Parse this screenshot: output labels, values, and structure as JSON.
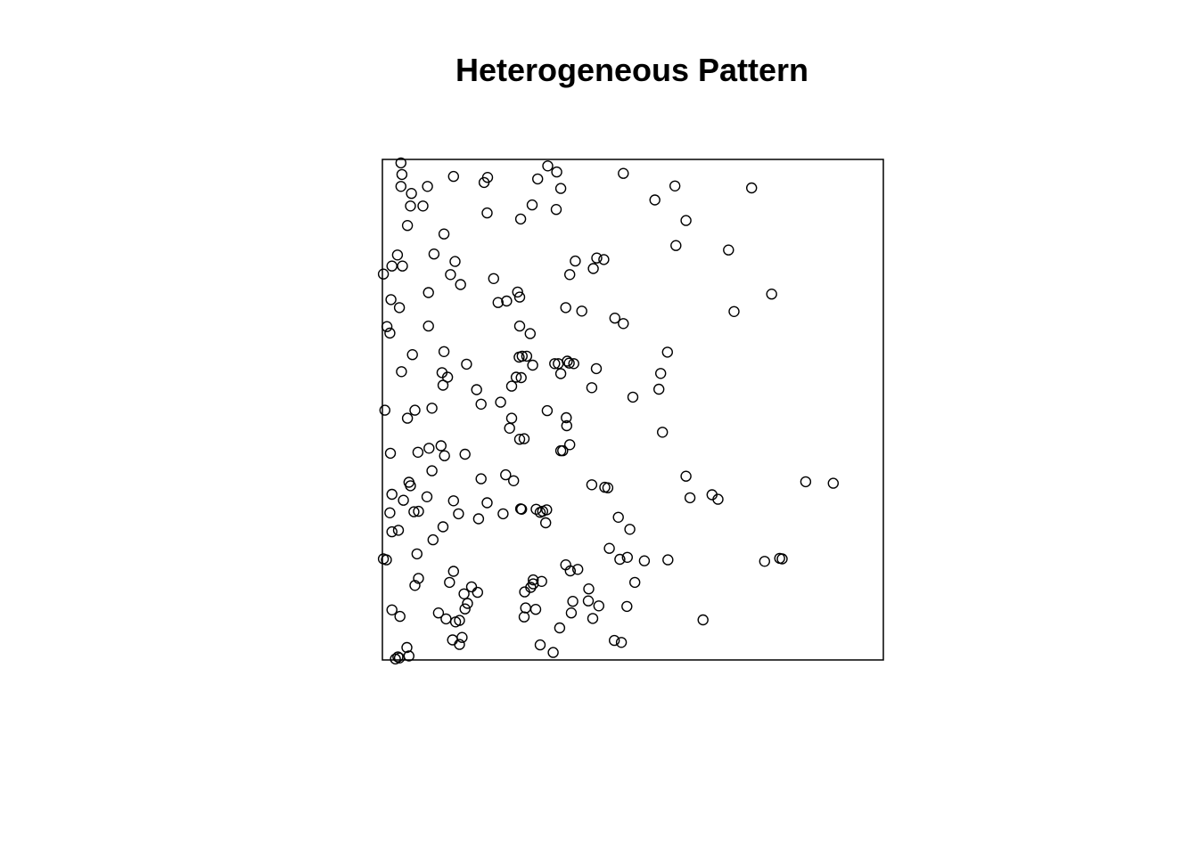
{
  "title": "Heterogeneous Pattern",
  "chart_data": {
    "type": "scatter",
    "title": "Heterogeneous Pattern",
    "xlabel": "",
    "ylabel": "",
    "xlim": [
      0,
      1
    ],
    "ylim": [
      0,
      1
    ],
    "axes_shown": false,
    "grid": false,
    "marker": "open-circle",
    "marker_color": "#000000",
    "points": [
      [
        0.037,
        0.993
      ],
      [
        0.039,
        0.97
      ],
      [
        0.037,
        0.946
      ],
      [
        0.058,
        0.932
      ],
      [
        0.056,
        0.907
      ],
      [
        0.081,
        0.907
      ],
      [
        0.09,
        0.946
      ],
      [
        0.142,
        0.966
      ],
      [
        0.05,
        0.868
      ],
      [
        0.21,
        0.964
      ],
      [
        0.203,
        0.954
      ],
      [
        0.209,
        0.893
      ],
      [
        0.276,
        0.881
      ],
      [
        0.33,
        0.987
      ],
      [
        0.348,
        0.975
      ],
      [
        0.31,
        0.961
      ],
      [
        0.356,
        0.942
      ],
      [
        0.347,
        0.9
      ],
      [
        0.299,
        0.909
      ],
      [
        0.481,
        0.972
      ],
      [
        0.544,
        0.919
      ],
      [
        0.584,
        0.947
      ],
      [
        0.606,
        0.878
      ],
      [
        0.586,
        0.828
      ],
      [
        0.737,
        0.943
      ],
      [
        0.691,
        0.819
      ],
      [
        0.123,
        0.851
      ],
      [
        0.103,
        0.811
      ],
      [
        0.145,
        0.796
      ],
      [
        0.136,
        0.77
      ],
      [
        0.156,
        0.75
      ],
      [
        0.03,
        0.809
      ],
      [
        0.019,
        0.787
      ],
      [
        0.04,
        0.787
      ],
      [
        0.002,
        0.771
      ],
      [
        0.222,
        0.762
      ],
      [
        0.092,
        0.734
      ],
      [
        0.017,
        0.72
      ],
      [
        0.034,
        0.704
      ],
      [
        0.27,
        0.735
      ],
      [
        0.274,
        0.725
      ],
      [
        0.248,
        0.717
      ],
      [
        0.231,
        0.714
      ],
      [
        0.385,
        0.797
      ],
      [
        0.374,
        0.77
      ],
      [
        0.428,
        0.803
      ],
      [
        0.442,
        0.8
      ],
      [
        0.421,
        0.782
      ],
      [
        0.366,
        0.704
      ],
      [
        0.398,
        0.697
      ],
      [
        0.464,
        0.683
      ],
      [
        0.481,
        0.672
      ],
      [
        0.702,
        0.696
      ],
      [
        0.777,
        0.731
      ],
      [
        0.009,
        0.666
      ],
      [
        0.015,
        0.653
      ],
      [
        0.092,
        0.667
      ],
      [
        0.274,
        0.667
      ],
      [
        0.295,
        0.652
      ],
      [
        0.06,
        0.61
      ],
      [
        0.123,
        0.616
      ],
      [
        0.038,
        0.576
      ],
      [
        0.119,
        0.574
      ],
      [
        0.168,
        0.591
      ],
      [
        0.121,
        0.549
      ],
      [
        0.13,
        0.565
      ],
      [
        0.273,
        0.605
      ],
      [
        0.279,
        0.607
      ],
      [
        0.288,
        0.607
      ],
      [
        0.3,
        0.589
      ],
      [
        0.277,
        0.564
      ],
      [
        0.267,
        0.565
      ],
      [
        0.258,
        0.547
      ],
      [
        0.344,
        0.592
      ],
      [
        0.351,
        0.592
      ],
      [
        0.369,
        0.597
      ],
      [
        0.373,
        0.593
      ],
      [
        0.382,
        0.592
      ],
      [
        0.427,
        0.582
      ],
      [
        0.356,
        0.572
      ],
      [
        0.418,
        0.544
      ],
      [
        0.569,
        0.615
      ],
      [
        0.552,
        0.541
      ],
      [
        0.5,
        0.525
      ],
      [
        0.5555,
        0.5725
      ],
      [
        0.005,
        0.499
      ],
      [
        0.05,
        0.483
      ],
      [
        0.065,
        0.499
      ],
      [
        0.099,
        0.503
      ],
      [
        0.188,
        0.54
      ],
      [
        0.197,
        0.511
      ],
      [
        0.236,
        0.515
      ],
      [
        0.258,
        0.483
      ],
      [
        0.254,
        0.463
      ],
      [
        0.274,
        0.441
      ],
      [
        0.283,
        0.442
      ],
      [
        0.329,
        0.498
      ],
      [
        0.367,
        0.484
      ],
      [
        0.368,
        0.468
      ],
      [
        0.374,
        0.43
      ],
      [
        0.356,
        0.418
      ],
      [
        0.36,
        0.418
      ],
      [
        0.559,
        0.455
      ],
      [
        0.016,
        0.413
      ],
      [
        0.071,
        0.415
      ],
      [
        0.093,
        0.423
      ],
      [
        0.117,
        0.428
      ],
      [
        0.124,
        0.408
      ],
      [
        0.099,
        0.378
      ],
      [
        0.165,
        0.411
      ],
      [
        0.053,
        0.355
      ],
      [
        0.056,
        0.348
      ],
      [
        0.246,
        0.37
      ],
      [
        0.197,
        0.362
      ],
      [
        0.262,
        0.358
      ],
      [
        0.209,
        0.314
      ],
      [
        0.019,
        0.331
      ],
      [
        0.042,
        0.319
      ],
      [
        0.063,
        0.296
      ],
      [
        0.072,
        0.297
      ],
      [
        0.015,
        0.294
      ],
      [
        0.089,
        0.326
      ],
      [
        0.142,
        0.318
      ],
      [
        0.152,
        0.292
      ],
      [
        0.019,
        0.256
      ],
      [
        0.032,
        0.259
      ],
      [
        0.069,
        0.212
      ],
      [
        0.121,
        0.266
      ],
      [
        0.101,
        0.24
      ],
      [
        0.192,
        0.282
      ],
      [
        0.241,
        0.292
      ],
      [
        0.276,
        0.302
      ],
      [
        0.278,
        0.301
      ],
      [
        0.307,
        0.301
      ],
      [
        0.32,
        0.297
      ],
      [
        0.328,
        0.3
      ],
      [
        0.315,
        0.295
      ],
      [
        0.326,
        0.274
      ],
      [
        0.418,
        0.35
      ],
      [
        0.444,
        0.345
      ],
      [
        0.45,
        0.344
      ],
      [
        0.606,
        0.367
      ],
      [
        0.67,
        0.321
      ],
      [
        0.614,
        0.324
      ],
      [
        0.845,
        0.356
      ],
      [
        0.9,
        0.353
      ],
      [
        0.471,
        0.285
      ],
      [
        0.494,
        0.261
      ],
      [
        0.453,
        0.223
      ],
      [
        0.002,
        0.202
      ],
      [
        0.008,
        0.2
      ],
      [
        0.142,
        0.177
      ],
      [
        0.072,
        0.163
      ],
      [
        0.065,
        0.149
      ],
      [
        0.134,
        0.155
      ],
      [
        0.163,
        0.132
      ],
      [
        0.178,
        0.146
      ],
      [
        0.19,
        0.135
      ],
      [
        0.301,
        0.16
      ],
      [
        0.301,
        0.152
      ],
      [
        0.318,
        0.157
      ],
      [
        0.284,
        0.136
      ],
      [
        0.296,
        0.145
      ],
      [
        0.375,
        0.178
      ],
      [
        0.39,
        0.181
      ],
      [
        0.366,
        0.19
      ],
      [
        0.412,
        0.142
      ],
      [
        0.38,
        0.117
      ],
      [
        0.474,
        0.201
      ],
      [
        0.489,
        0.205
      ],
      [
        0.504,
        0.155
      ],
      [
        0.523,
        0.198
      ],
      [
        0.57,
        0.2
      ],
      [
        0.763,
        0.197
      ],
      [
        0.798,
        0.202
      ],
      [
        0.793,
        0.203
      ],
      [
        0.658,
        0.33
      ],
      [
        0.411,
        0.118
      ],
      [
        0.432,
        0.108
      ],
      [
        0.42,
        0.083
      ],
      [
        0.377,
        0.094
      ],
      [
        0.488,
        0.107
      ],
      [
        0.306,
        0.101
      ],
      [
        0.286,
        0.104
      ],
      [
        0.283,
        0.086
      ],
      [
        0.17,
        0.113
      ],
      [
        0.165,
        0.102
      ],
      [
        0.112,
        0.094
      ],
      [
        0.019,
        0.1
      ],
      [
        0.035,
        0.087
      ],
      [
        0.154,
        0.079
      ],
      [
        0.146,
        0.076
      ],
      [
        0.127,
        0.082
      ],
      [
        0.14,
        0.04
      ],
      [
        0.159,
        0.045
      ],
      [
        0.154,
        0.031
      ],
      [
        0.354,
        0.064
      ],
      [
        0.463,
        0.039
      ],
      [
        0.477,
        0.035
      ],
      [
        0.64,
        0.08
      ],
      [
        0.315,
        0.03
      ],
      [
        0.341,
        0.015
      ],
      [
        0.049,
        0.025
      ],
      [
        0.053,
        0.008
      ],
      [
        0.026,
        0.002
      ],
      [
        0.031,
        0.006
      ],
      [
        0.034,
        0.004
      ]
    ]
  }
}
